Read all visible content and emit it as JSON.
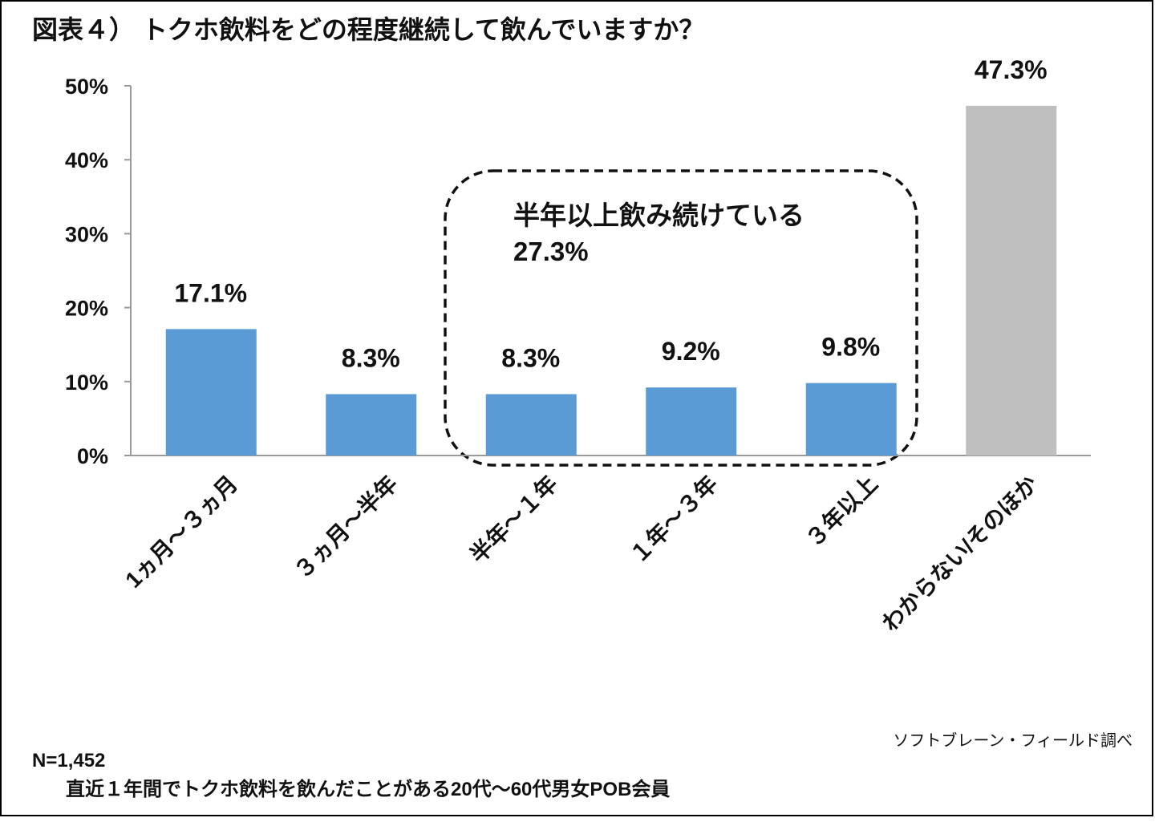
{
  "chart_data": {
    "type": "bar",
    "title": "図表４） トクホ飲料をどの程度継続して飲んでいますか？",
    "categories": [
      "1ヵ月～３ヵ月",
      "３ヵ月～半年",
      "半年～１年",
      "１年～３年",
      "３年以上",
      "わからない/そのほか"
    ],
    "values": [
      17.1,
      8.3,
      8.3,
      9.2,
      9.8,
      47.3
    ],
    "value_labels": [
      "17.1%",
      "8.3%",
      "8.3%",
      "9.2%",
      "9.8%",
      "47.3%"
    ],
    "colors": [
      "#5b9bd5",
      "#5b9bd5",
      "#5b9bd5",
      "#5b9bd5",
      "#5b9bd5",
      "#bfbfbf"
    ],
    "ylim": [
      0,
      50
    ],
    "yticks": [
      {
        "value": 0,
        "label": "0%"
      },
      {
        "value": 10,
        "label": "10%"
      },
      {
        "value": 20,
        "label": "20%"
      },
      {
        "value": 30,
        "label": "30%"
      },
      {
        "value": 40,
        "label": "40%"
      },
      {
        "value": 50,
        "label": "50%"
      }
    ],
    "annotation": [
      "半年以上飲み続けている",
      "27.3%"
    ],
    "source": "ソフトブレーン・フィールド調べ",
    "notes": [
      "N=1,452",
      "直近１年間でトクホ飲料を飲んだことがある20代～60代男女POB会員"
    ]
  }
}
